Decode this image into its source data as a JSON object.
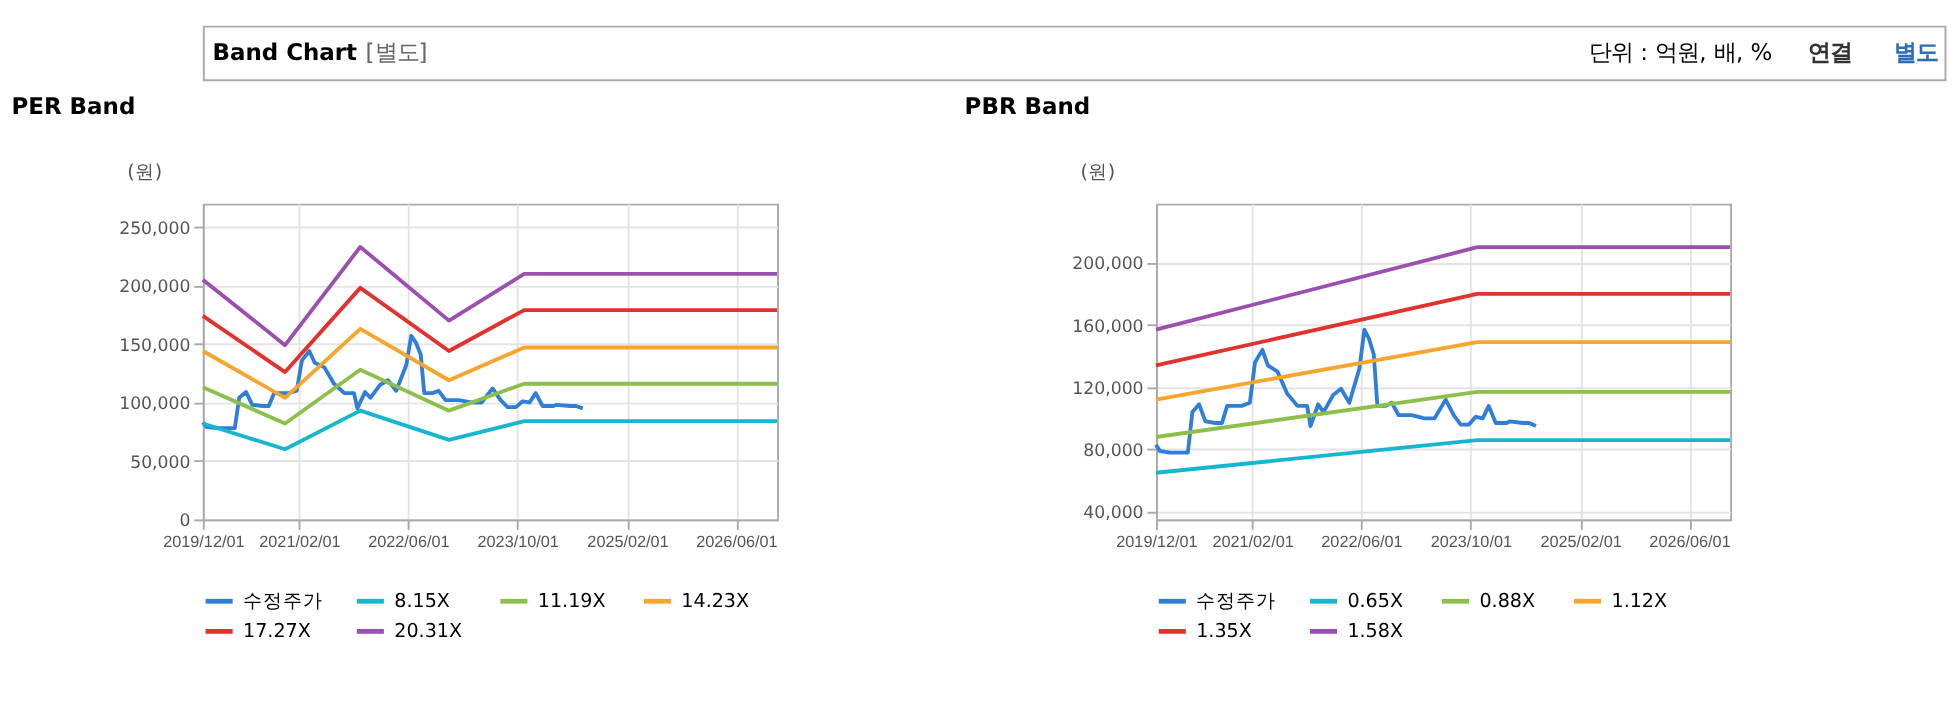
{
  "chart_data": [
    {
      "type": "line",
      "title": "PER Band",
      "ylabel": "(원)",
      "annotations": [
        "Band Chart",
        "[별도]",
        "단위 : 억원, 배, %",
        "연결",
        "별도"
      ],
      "xlim": [
        "2019-12-01",
        "2026-12-01"
      ],
      "xticks": [
        {
          "value": "2019-12-01",
          "label": "2019/12/01"
        },
        {
          "value": "2021-02-01",
          "label": "2021/02/01"
        },
        {
          "value": "2022-06-01",
          "label": "2022/06/01"
        },
        {
          "value": "2023-10-01",
          "label": "2023/10/01"
        },
        {
          "value": "2025-02-01",
          "label": "2025/02/01"
        },
        {
          "value": "2026-06-01",
          "label": "2026/06/01"
        }
      ],
      "ylim": [
        0,
        270000
      ],
      "yticks": [
        0,
        {
          "value": 50000,
          "label": "50,000"
        },
        {
          "value": 100000,
          "label": "100,000"
        },
        {
          "value": 150000,
          "label": "150,000"
        },
        {
          "value": 200000,
          "label": "200,000"
        },
        {
          "value": 250000,
          "label": "250,000"
        }
      ],
      "grid": true,
      "legend": "bottom",
      "marker": "none",
      "line_style": "solid",
      "series": [
        {
          "name": "수정주가",
          "color": "#2f7ed8",
          "x": [
            "2019-12-01",
            "2019-12-18",
            "2020-02-01",
            "2020-03-14",
            "2020-04-21",
            "2020-05-11",
            "2020-06-10",
            "2020-07-08",
            "2020-08-22",
            "2020-09-20",
            "2020-10-13",
            "2020-12-16",
            "2021-01-22",
            "2021-02-14",
            "2021-03-19",
            "2021-04-12",
            "2021-05-25",
            "2021-07-07",
            "2021-08-22",
            "2021-10-04",
            "2021-10-19",
            "2021-11-22",
            "2021-12-16",
            "2022-01-28",
            "2022-03-04",
            "2022-04-10",
            "2022-05-25",
            "2022-06-16",
            "2022-07-07",
            "2022-07-28",
            "2022-08-13",
            "2022-09-19",
            "2022-10-16",
            "2022-11-16",
            "2023-01-13",
            "2023-03-10",
            "2023-04-25",
            "2023-06-13",
            "2023-07-19",
            "2023-08-19",
            "2023-09-25",
            "2023-10-25",
            "2023-11-25",
            "2023-12-22",
            "2024-01-22",
            "2024-03-10",
            "2024-03-25",
            "2024-05-22",
            "2024-06-19",
            "2024-07-19"
          ],
          "values": [
            83000,
            79000,
            78000,
            78000,
            78000,
            104000,
            109000,
            98000,
            97000,
            97000,
            108000,
            108000,
            110000,
            136000,
            144000,
            134000,
            130000,
            116000,
            108000,
            108000,
            95000,
            109000,
            104000,
            115000,
            119000,
            110000,
            132000,
            157000,
            151000,
            141000,
            108000,
            108000,
            110000,
            102000,
            102000,
            100000,
            100000,
            112000,
            102000,
            96000,
            96000,
            101000,
            100000,
            108000,
            97000,
            97000,
            98000,
            97000,
            97000,
            95000
          ]
        },
        {
          "name": "8.15X",
          "color": "#17b6d0",
          "x": [
            "2019-12-01",
            "2020-12-01",
            "2021-11-01",
            "2022-12-01",
            "2023-11-01",
            "2026-12-01"
          ],
          "values": [
            82000,
            60000,
            93000,
            68000,
            84000,
            84000
          ]
        },
        {
          "name": "11.19X",
          "color": "#8cc04b",
          "x": [
            "2019-12-01",
            "2020-12-01",
            "2021-11-01",
            "2022-12-01",
            "2023-11-01",
            "2026-12-01"
          ],
          "values": [
            113000,
            82000,
            128000,
            93000,
            116000,
            116000
          ]
        },
        {
          "name": "14.23X",
          "color": "#f7a52c",
          "x": [
            "2019-12-01",
            "2020-12-01",
            "2021-11-01",
            "2022-12-01",
            "2023-11-01",
            "2026-12-01"
          ],
          "values": [
            144000,
            104000,
            163000,
            119000,
            147000,
            147000
          ]
        },
        {
          "name": "17.27X",
          "color": "#e3312d",
          "x": [
            "2019-12-01",
            "2020-12-01",
            "2021-11-01",
            "2022-12-01",
            "2023-11-01",
            "2026-12-01"
          ],
          "values": [
            174000,
            126000,
            198000,
            144000,
            179000,
            179000
          ]
        },
        {
          "name": "20.31X",
          "color": "#9b4fae",
          "x": [
            "2019-12-01",
            "2020-12-01",
            "2021-11-01",
            "2022-12-01",
            "2023-11-01",
            "2026-12-01"
          ],
          "values": [
            205000,
            149000,
            233000,
            170000,
            210000,
            210000
          ]
        }
      ]
    },
    {
      "type": "line",
      "title": "PBR Band",
      "ylabel": "(원)",
      "xlim": [
        "2019-12-01",
        "2026-12-01"
      ],
      "xticks": [
        {
          "value": "2019-12-01",
          "label": "2019/12/01"
        },
        {
          "value": "2021-02-01",
          "label": "2021/02/01"
        },
        {
          "value": "2022-06-01",
          "label": "2022/06/01"
        },
        {
          "value": "2023-10-01",
          "label": "2023/10/01"
        },
        {
          "value": "2025-02-01",
          "label": "2025/02/01"
        },
        {
          "value": "2026-06-01",
          "label": "2026/06/01"
        }
      ],
      "ylim": [
        35000,
        238000
      ],
      "yticks": [
        {
          "value": 40000,
          "label": "40,000"
        },
        {
          "value": 80000,
          "label": "80,000"
        },
        {
          "value": 120000,
          "label": "120,000"
        },
        {
          "value": 160000,
          "label": "160,000"
        },
        {
          "value": 200000,
          "label": "200,000"
        }
      ],
      "grid": true,
      "legend": "bottom",
      "marker": "none",
      "line_style": "solid",
      "series": [
        {
          "name": "수정주가",
          "color": "#2f7ed8",
          "x": [
            "2019-12-01",
            "2019-12-18",
            "2020-02-01",
            "2020-03-14",
            "2020-04-21",
            "2020-05-11",
            "2020-06-10",
            "2020-07-08",
            "2020-08-22",
            "2020-09-20",
            "2020-10-13",
            "2020-12-16",
            "2021-01-22",
            "2021-02-14",
            "2021-03-19",
            "2021-04-12",
            "2021-05-25",
            "2021-07-07",
            "2021-08-22",
            "2021-10-04",
            "2021-10-19",
            "2021-11-22",
            "2021-12-16",
            "2022-01-28",
            "2022-03-04",
            "2022-04-10",
            "2022-05-25",
            "2022-06-16",
            "2022-07-07",
            "2022-07-28",
            "2022-08-13",
            "2022-09-19",
            "2022-10-16",
            "2022-11-16",
            "2023-01-13",
            "2023-03-10",
            "2023-04-25",
            "2023-06-13",
            "2023-07-19",
            "2023-08-19",
            "2023-09-25",
            "2023-10-25",
            "2023-11-25",
            "2023-12-22",
            "2024-01-22",
            "2024-03-10",
            "2024-03-25",
            "2024-05-22",
            "2024-06-19",
            "2024-07-19"
          ],
          "values": [
            83000,
            79000,
            78000,
            78000,
            78000,
            104000,
            109000,
            98000,
            97000,
            97000,
            108000,
            108000,
            110000,
            136000,
            144000,
            134000,
            130000,
            116000,
            108000,
            108000,
            95000,
            109000,
            104000,
            115000,
            119000,
            110000,
            132000,
            157000,
            151000,
            141000,
            108000,
            108000,
            110000,
            102000,
            102000,
            100000,
            100000,
            112000,
            102000,
            96000,
            96000,
            101000,
            100000,
            108000,
            97000,
            97000,
            98000,
            97000,
            97000,
            95000
          ]
        },
        {
          "name": "0.65X",
          "color": "#17b6d0",
          "x": [
            "2019-12-01",
            "2023-11-01",
            "2026-12-01"
          ],
          "values": [
            65000,
            86000,
            86000
          ]
        },
        {
          "name": "0.88X",
          "color": "#8cc04b",
          "x": [
            "2019-12-01",
            "2023-11-01",
            "2026-12-01"
          ],
          "values": [
            88000,
            117000,
            117000
          ]
        },
        {
          "name": "1.12X",
          "color": "#f7a52c",
          "x": [
            "2019-12-01",
            "2023-11-01",
            "2026-12-01"
          ],
          "values": [
            112000,
            149000,
            149000
          ]
        },
        {
          "name": "1.35X",
          "color": "#e3312d",
          "x": [
            "2019-12-01",
            "2023-11-01",
            "2026-12-01"
          ],
          "values": [
            134000,
            180000,
            180000
          ]
        },
        {
          "name": "1.58X",
          "color": "#9b4fae",
          "x": [
            "2019-12-01",
            "2023-11-01",
            "2026-12-01"
          ],
          "values": [
            157000,
            210000,
            210000
          ]
        }
      ]
    }
  ]
}
